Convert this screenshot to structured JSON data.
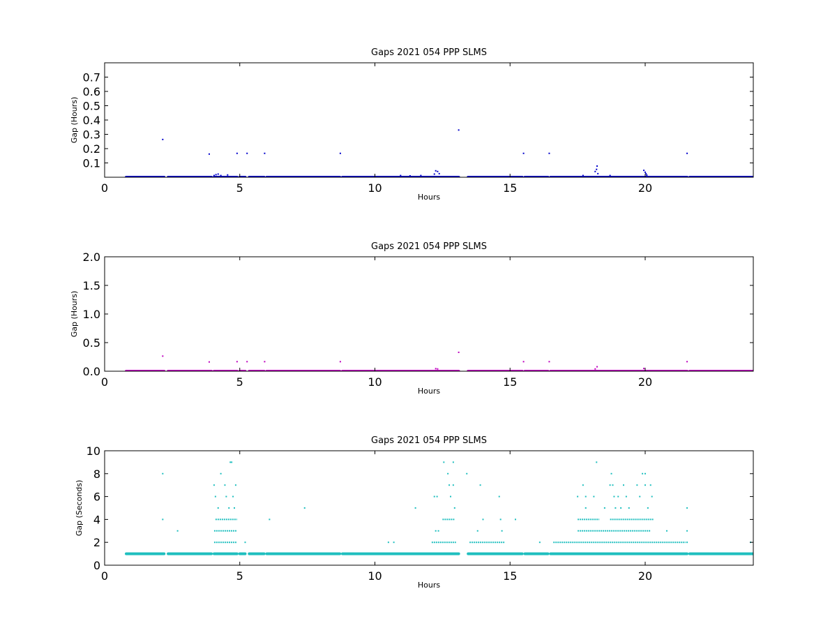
{
  "chart_data": [
    {
      "type": "scatter",
      "title": "Gaps 2021 054 PPP  SLMS",
      "xlabel": "Hours",
      "ylabel": "Gap (Hours)",
      "xlim": [
        0,
        24
      ],
      "ylim": [
        0,
        0.8
      ],
      "xticks": [
        0,
        5,
        10,
        15,
        20
      ],
      "yticks": [
        0.1,
        0.2,
        0.3,
        0.4,
        0.5,
        0.6,
        0.7
      ],
      "ytick_labels": [
        "0.1",
        "0.2",
        "0.3",
        "0.4",
        "0.5",
        "0.6",
        "0.7"
      ],
      "color": "#0000cc",
      "baseline": {
        "y": 0.0003,
        "segments": [
          [
            0.8,
            2.2
          ],
          [
            2.35,
            3.95
          ],
          [
            4.05,
            4.9
          ],
          [
            5.0,
            5.2
          ],
          [
            5.35,
            5.9
          ],
          [
            6.0,
            8.7
          ],
          [
            8.8,
            13.1
          ],
          [
            13.45,
            15.45
          ],
          [
            15.55,
            16.4
          ],
          [
            16.5,
            21.55
          ],
          [
            21.65,
            24.0
          ]
        ]
      },
      "points": [
        {
          "x": 2.15,
          "y": 0.264
        },
        {
          "x": 3.87,
          "y": 0.162
        },
        {
          "x": 4.05,
          "y": 0.012
        },
        {
          "x": 4.12,
          "y": 0.018
        },
        {
          "x": 4.2,
          "y": 0.022
        },
        {
          "x": 4.3,
          "y": 0.012
        },
        {
          "x": 4.55,
          "y": 0.016
        },
        {
          "x": 4.9,
          "y": 0.167
        },
        {
          "x": 5.27,
          "y": 0.167
        },
        {
          "x": 5.92,
          "y": 0.167
        },
        {
          "x": 8.72,
          "y": 0.167
        },
        {
          "x": 10.95,
          "y": 0.012
        },
        {
          "x": 11.3,
          "y": 0.01
        },
        {
          "x": 11.7,
          "y": 0.012
        },
        {
          "x": 12.2,
          "y": 0.022
        },
        {
          "x": 12.25,
          "y": 0.045
        },
        {
          "x": 12.32,
          "y": 0.04
        },
        {
          "x": 12.38,
          "y": 0.025
        },
        {
          "x": 13.1,
          "y": 0.33
        },
        {
          "x": 15.5,
          "y": 0.167
        },
        {
          "x": 16.45,
          "y": 0.167
        },
        {
          "x": 17.7,
          "y": 0.012
        },
        {
          "x": 18.15,
          "y": 0.04
        },
        {
          "x": 18.2,
          "y": 0.055
        },
        {
          "x": 18.22,
          "y": 0.078
        },
        {
          "x": 18.25,
          "y": 0.025
        },
        {
          "x": 18.7,
          "y": 0.012
        },
        {
          "x": 19.95,
          "y": 0.048
        },
        {
          "x": 20.0,
          "y": 0.035
        },
        {
          "x": 20.03,
          "y": 0.025
        },
        {
          "x": 20.06,
          "y": 0.015
        },
        {
          "x": 21.55,
          "y": 0.167
        }
      ]
    },
    {
      "type": "scatter",
      "title": "Gaps 2021 054 PPP  SLMS",
      "xlabel": "Hours",
      "ylabel": "Gap (Hours)",
      "xlim": [
        0,
        24
      ],
      "ylim": [
        0,
        2
      ],
      "xticks": [
        0,
        5,
        10,
        15,
        20
      ],
      "yticks": [
        0.0,
        0.5,
        1.0,
        1.5,
        2.0
      ],
      "ytick_labels": [
        "0.0",
        "0.5",
        "1.0",
        "1.5",
        "2.0"
      ],
      "color": "#bf00bf",
      "baseline": {
        "y": 0.0003,
        "segments": [
          [
            0.8,
            2.2
          ],
          [
            2.35,
            3.95
          ],
          [
            4.05,
            4.9
          ],
          [
            5.0,
            5.2
          ],
          [
            5.35,
            5.9
          ],
          [
            6.0,
            8.7
          ],
          [
            8.8,
            13.1
          ],
          [
            13.45,
            15.45
          ],
          [
            15.55,
            16.4
          ],
          [
            16.5,
            21.55
          ],
          [
            21.65,
            24.0
          ]
        ]
      },
      "points": [
        {
          "x": 2.15,
          "y": 0.264
        },
        {
          "x": 3.87,
          "y": 0.162
        },
        {
          "x": 4.9,
          "y": 0.167
        },
        {
          "x": 5.27,
          "y": 0.167
        },
        {
          "x": 5.92,
          "y": 0.167
        },
        {
          "x": 8.72,
          "y": 0.167
        },
        {
          "x": 12.25,
          "y": 0.045
        },
        {
          "x": 12.32,
          "y": 0.04
        },
        {
          "x": 13.1,
          "y": 0.33
        },
        {
          "x": 15.5,
          "y": 0.167
        },
        {
          "x": 16.45,
          "y": 0.167
        },
        {
          "x": 18.15,
          "y": 0.04
        },
        {
          "x": 18.22,
          "y": 0.078
        },
        {
          "x": 19.95,
          "y": 0.048
        },
        {
          "x": 21.55,
          "y": 0.167
        }
      ]
    },
    {
      "type": "scatter",
      "title": "Gaps 2021 054 PPP  SLMS",
      "xlabel": "Hours",
      "ylabel": "Gap (Seconds)",
      "xlim": [
        0,
        24
      ],
      "ylim": [
        0,
        10
      ],
      "xticks": [
        0,
        5,
        10,
        15,
        20
      ],
      "yticks": [
        0,
        2,
        4,
        6,
        8,
        10
      ],
      "ytick_labels": [
        "0",
        "2",
        "4",
        "6",
        "8",
        "10"
      ],
      "color": "#1fbfbf",
      "baseline": {
        "y": 1,
        "segments": [
          [
            0.8,
            2.2
          ],
          [
            2.35,
            3.95
          ],
          [
            4.05,
            4.9
          ],
          [
            5.0,
            5.2
          ],
          [
            5.35,
            5.9
          ],
          [
            6.0,
            8.7
          ],
          [
            8.8,
            13.1
          ],
          [
            13.45,
            15.45
          ],
          [
            15.55,
            16.4
          ],
          [
            16.5,
            21.55
          ],
          [
            21.65,
            24.0
          ]
        ]
      },
      "runs": [
        {
          "y": 2,
          "x0": 4.05,
          "x1": 4.9
        },
        {
          "y": 2,
          "x0": 12.1,
          "x1": 13.0
        },
        {
          "y": 2,
          "x0": 13.5,
          "x1": 14.8
        },
        {
          "y": 2,
          "x0": 16.6,
          "x1": 21.5
        },
        {
          "y": 4,
          "x0": 4.1,
          "x1": 4.9
        },
        {
          "y": 4,
          "x0": 12.5,
          "x1": 12.95
        },
        {
          "y": 4,
          "x0": 17.5,
          "x1": 18.3
        },
        {
          "y": 4,
          "x0": 18.7,
          "x1": 20.3
        },
        {
          "y": 3,
          "x0": 4.05,
          "x1": 4.9
        },
        {
          "y": 3,
          "x0": 17.5,
          "x1": 20.2
        }
      ],
      "points": [
        {
          "x": 2.15,
          "y": 8
        },
        {
          "x": 2.15,
          "y": 4
        },
        {
          "x": 2.7,
          "y": 3
        },
        {
          "x": 4.05,
          "y": 7
        },
        {
          "x": 4.1,
          "y": 6
        },
        {
          "x": 4.2,
          "y": 5
        },
        {
          "x": 4.3,
          "y": 8
        },
        {
          "x": 4.45,
          "y": 7
        },
        {
          "x": 4.5,
          "y": 6
        },
        {
          "x": 4.6,
          "y": 5
        },
        {
          "x": 4.65,
          "y": 9
        },
        {
          "x": 4.7,
          "y": 9
        },
        {
          "x": 4.75,
          "y": 6
        },
        {
          "x": 4.85,
          "y": 7
        },
        {
          "x": 4.8,
          "y": 5
        },
        {
          "x": 5.2,
          "y": 2
        },
        {
          "x": 6.1,
          "y": 4
        },
        {
          "x": 7.4,
          "y": 5
        },
        {
          "x": 10.5,
          "y": 2
        },
        {
          "x": 10.7,
          "y": 2
        },
        {
          "x": 11.5,
          "y": 5
        },
        {
          "x": 12.2,
          "y": 6
        },
        {
          "x": 12.3,
          "y": 6
        },
        {
          "x": 12.25,
          "y": 3
        },
        {
          "x": 12.35,
          "y": 3
        },
        {
          "x": 12.55,
          "y": 9
        },
        {
          "x": 12.7,
          "y": 8
        },
        {
          "x": 12.75,
          "y": 7
        },
        {
          "x": 12.8,
          "y": 6
        },
        {
          "x": 12.9,
          "y": 9
        },
        {
          "x": 12.9,
          "y": 7
        },
        {
          "x": 12.95,
          "y": 5
        },
        {
          "x": 13.4,
          "y": 8
        },
        {
          "x": 13.8,
          "y": 3
        },
        {
          "x": 13.9,
          "y": 7
        },
        {
          "x": 14.0,
          "y": 4
        },
        {
          "x": 14.6,
          "y": 6
        },
        {
          "x": 14.65,
          "y": 4
        },
        {
          "x": 14.7,
          "y": 3
        },
        {
          "x": 15.2,
          "y": 4
        },
        {
          "x": 16.1,
          "y": 2
        },
        {
          "x": 17.5,
          "y": 6
        },
        {
          "x": 17.7,
          "y": 7
        },
        {
          "x": 17.8,
          "y": 6
        },
        {
          "x": 17.8,
          "y": 5
        },
        {
          "x": 18.1,
          "y": 6
        },
        {
          "x": 18.2,
          "y": 9
        },
        {
          "x": 18.5,
          "y": 5
        },
        {
          "x": 18.7,
          "y": 7
        },
        {
          "x": 18.75,
          "y": 8
        },
        {
          "x": 18.8,
          "y": 7
        },
        {
          "x": 18.85,
          "y": 6
        },
        {
          "x": 18.9,
          "y": 5
        },
        {
          "x": 19.0,
          "y": 6
        },
        {
          "x": 19.1,
          "y": 5
        },
        {
          "x": 19.2,
          "y": 7
        },
        {
          "x": 19.3,
          "y": 6
        },
        {
          "x": 19.4,
          "y": 5
        },
        {
          "x": 19.7,
          "y": 7
        },
        {
          "x": 19.8,
          "y": 6
        },
        {
          "x": 19.9,
          "y": 8
        },
        {
          "x": 20.0,
          "y": 8
        },
        {
          "x": 20.0,
          "y": 7
        },
        {
          "x": 20.1,
          "y": 5
        },
        {
          "x": 20.2,
          "y": 7
        },
        {
          "x": 20.25,
          "y": 6
        },
        {
          "x": 20.8,
          "y": 3
        },
        {
          "x": 21.55,
          "y": 5
        },
        {
          "x": 21.55,
          "y": 3
        },
        {
          "x": 21.55,
          "y": 2
        },
        {
          "x": 23.9,
          "y": 2
        }
      ]
    }
  ]
}
